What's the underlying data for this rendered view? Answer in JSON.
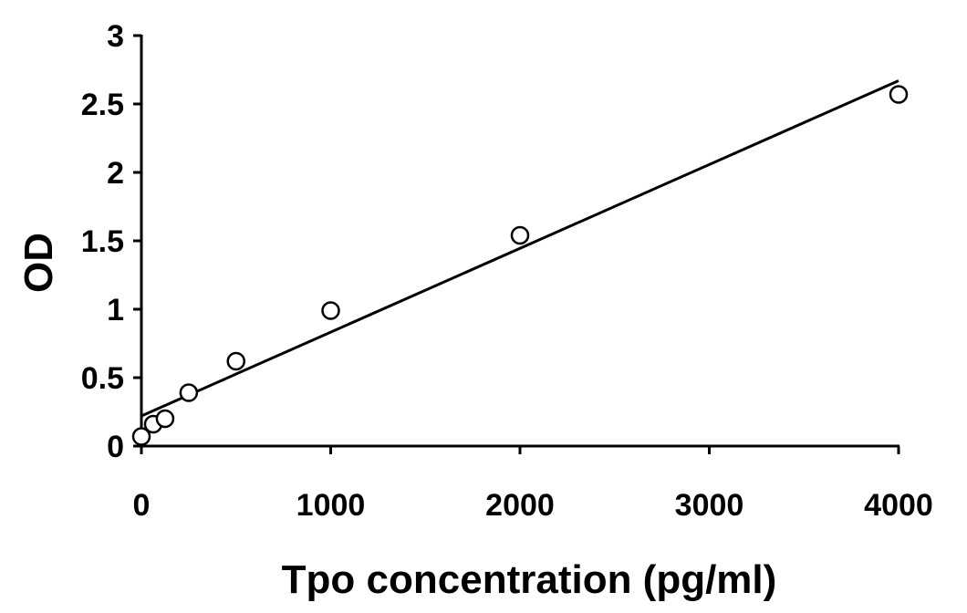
{
  "chart_data": {
    "type": "scatter",
    "xlabel": "Tpo concentration (pg/ml)",
    "ylabel": "OD",
    "xlim": [
      0,
      4000
    ],
    "ylim": [
      0,
      3
    ],
    "xticks": [
      0,
      1000,
      2000,
      3000,
      4000
    ],
    "yticks": [
      0,
      0.5,
      1,
      1.5,
      2,
      2.5,
      3
    ],
    "xtick_labels": [
      "0",
      "1000",
      "2000",
      "3000",
      "4000"
    ],
    "ytick_labels": [
      "0",
      "0.5",
      "1",
      "1.5",
      "2",
      "2.5",
      "3"
    ],
    "grid": false,
    "legend": "none",
    "series": [
      {
        "marker": "open-circle",
        "points": [
          {
            "x": 0,
            "y": 0.07
          },
          {
            "x": 62.5,
            "y": 0.16
          },
          {
            "x": 125,
            "y": 0.2
          },
          {
            "x": 250,
            "y": 0.39
          },
          {
            "x": 500,
            "y": 0.62
          },
          {
            "x": 1000,
            "y": 0.99
          },
          {
            "x": 2000,
            "y": 1.54
          },
          {
            "x": 4000,
            "y": 2.57
          }
        ]
      }
    ],
    "trendline": {
      "type": "linear",
      "x": [
        0,
        4000
      ],
      "y": [
        0.22,
        2.67
      ]
    }
  }
}
